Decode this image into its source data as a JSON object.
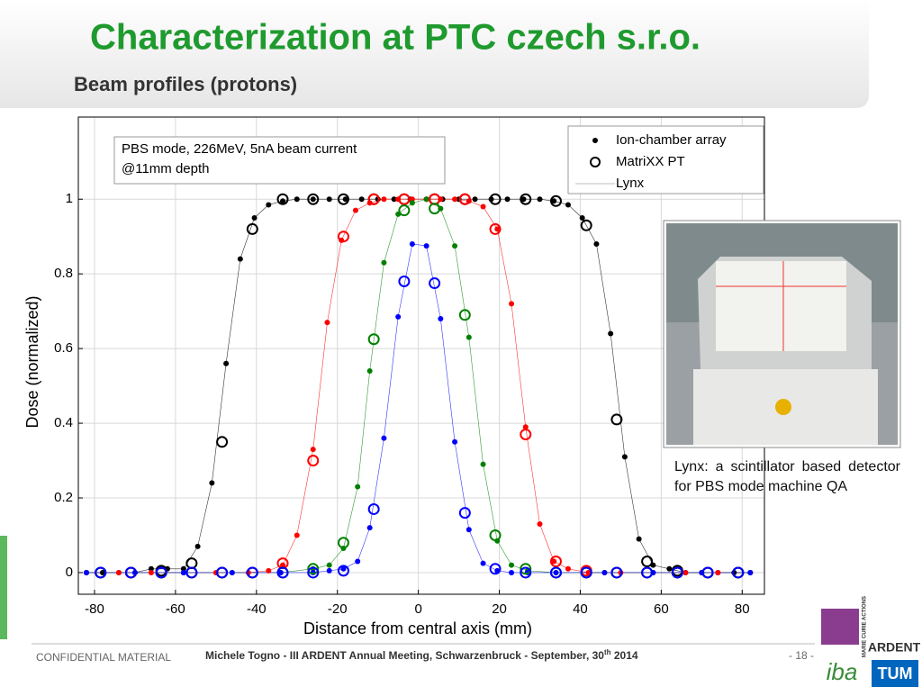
{
  "header": {
    "title": "Characterization at PTC czech s.r.o.",
    "subtitle": "Beam profiles (protons)"
  },
  "chart_data": {
    "type": "scatter",
    "annotation": [
      "PBS mode, 226MeV, 5nA beam current",
      "@11mm depth"
    ],
    "xlabel": "Distance from central axis (mm)",
    "ylabel": "Dose (normalized)",
    "xlim": [
      -84,
      85.5
    ],
    "ylim": [
      -0.058,
      1.22
    ],
    "xticks": [
      -80,
      -60,
      -40,
      -20,
      0,
      20,
      40,
      60,
      80
    ],
    "yticks": [
      0,
      0.2,
      0.4,
      0.6,
      0.8,
      1
    ],
    "grid": true,
    "legend_position": "upper right",
    "legend": [
      {
        "name": "Ion-chamber array",
        "marker": "dot"
      },
      {
        "name": "MatriXX PT",
        "marker": "circle"
      },
      {
        "name": "Lynx",
        "marker": "line"
      }
    ],
    "series": [
      {
        "color": "#000000",
        "marker": "line",
        "x": [
          -82,
          -78,
          -74,
          -70,
          -66,
          -62,
          -58,
          -54.5,
          -51,
          -47.5,
          -44,
          -40.5,
          -37,
          -33.5,
          -30,
          -26,
          -22,
          -18,
          -14,
          -10,
          -6,
          -2,
          2,
          6,
          10,
          14,
          18,
          22,
          26,
          30,
          33.5,
          37,
          40.5,
          44,
          47.5,
          51,
          54.5,
          58,
          62,
          66,
          70,
          74,
          78,
          82
        ],
        "values": [
          0,
          0,
          0,
          0,
          0.01,
          0.01,
          0.01,
          0.07,
          0.24,
          0.56,
          0.84,
          0.95,
          0.985,
          0.995,
          1,
          1,
          1,
          1,
          1,
          1,
          1,
          1,
          1,
          1,
          1,
          1,
          1,
          1,
          1,
          1,
          0.995,
          0.985,
          0.95,
          0.88,
          0.64,
          0.31,
          0.09,
          0.02,
          0.01,
          0,
          0,
          0,
          0,
          0
        ]
      },
      {
        "color": "#ff0000",
        "marker": "line",
        "x": [
          -82,
          -74,
          -66,
          -58,
          -50,
          -42,
          -37,
          -33.5,
          -30,
          -26,
          -22.5,
          -19,
          -15.5,
          -12,
          -8.5,
          -5,
          -1.5,
          2,
          5.5,
          9,
          12.5,
          16,
          19.5,
          23,
          26.5,
          30,
          33.5,
          37,
          42,
          50,
          58,
          66,
          74,
          82
        ],
        "values": [
          0,
          0,
          0,
          0,
          0,
          0,
          0.005,
          0.02,
          0.1,
          0.33,
          0.67,
          0.89,
          0.97,
          0.99,
          1,
          1,
          1,
          1,
          1,
          1,
          0.995,
          0.98,
          0.92,
          0.72,
          0.39,
          0.13,
          0.03,
          0.01,
          0,
          0,
          0,
          0,
          0,
          0
        ]
      },
      {
        "color": "#008000",
        "marker": "line",
        "x": [
          -82,
          -70,
          -58,
          -46,
          -34,
          -26,
          -22,
          -18.5,
          -15,
          -12,
          -8.5,
          -5,
          -1.5,
          2,
          5.5,
          9,
          12.5,
          16,
          19.5,
          23,
          27,
          34,
          46,
          58,
          70,
          82
        ],
        "values": [
          0,
          0,
          0,
          0,
          0,
          0.01,
          0.02,
          0.065,
          0.23,
          0.54,
          0.83,
          0.96,
          0.99,
          1,
          0.975,
          0.875,
          0.63,
          0.29,
          0.085,
          0.02,
          0.005,
          0,
          0,
          0,
          0,
          0
        ]
      },
      {
        "color": "#0000ff",
        "marker": "line",
        "x": [
          -82,
          -70,
          -58,
          -46,
          -34,
          -26,
          -22,
          -18.5,
          -15,
          -12,
          -8.5,
          -5,
          -1.5,
          2,
          5.5,
          9,
          12.5,
          16,
          19.5,
          23,
          27,
          34,
          46,
          58,
          70,
          82
        ],
        "values": [
          0,
          0,
          0,
          0,
          0,
          0,
          0.005,
          0.01,
          0.03,
          0.12,
          0.36,
          0.685,
          0.88,
          0.875,
          0.68,
          0.35,
          0.115,
          0.025,
          0.005,
          0,
          0,
          0,
          0,
          0,
          0,
          0
        ]
      },
      {
        "color": "#000000",
        "marker": "dot",
        "x": [
          -82,
          -78,
          -74,
          -70,
          -66,
          -62,
          -58,
          -54.5,
          -51,
          -47.5,
          -44,
          -40.5,
          -37,
          -33.5,
          -30,
          -26,
          -22,
          -18,
          -14,
          -10,
          -6,
          -2,
          2,
          6,
          10,
          14,
          18,
          22,
          26,
          30,
          33.5,
          37,
          40.5,
          44,
          47.5,
          51,
          54.5,
          58,
          62,
          66,
          70,
          74,
          78,
          82
        ],
        "values": [
          0,
          0,
          0,
          0,
          0.01,
          0.01,
          0.01,
          0.07,
          0.24,
          0.56,
          0.84,
          0.95,
          0.985,
          0.995,
          1,
          1,
          1,
          1,
          1,
          1,
          1,
          1,
          1,
          1,
          1,
          1,
          1,
          1,
          1,
          1,
          0.995,
          0.985,
          0.95,
          0.88,
          0.64,
          0.31,
          0.09,
          0.02,
          0.01,
          0,
          0,
          0,
          0,
          0
        ]
      },
      {
        "color": "#ff0000",
        "marker": "dot",
        "x": [
          -82,
          -74,
          -66,
          -58,
          -50,
          -42,
          -37,
          -33.5,
          -30,
          -26,
          -22.5,
          -19,
          -15.5,
          -12,
          -8.5,
          -5,
          -1.5,
          2,
          5.5,
          9,
          12.5,
          16,
          19.5,
          23,
          26.5,
          30,
          33.5,
          37,
          42,
          50,
          58,
          66,
          74,
          82
        ],
        "values": [
          0,
          0,
          0,
          0,
          0,
          0,
          0.005,
          0.02,
          0.1,
          0.33,
          0.67,
          0.89,
          0.97,
          0.99,
          1,
          1,
          1,
          1,
          1,
          1,
          0.995,
          0.98,
          0.92,
          0.72,
          0.39,
          0.13,
          0.03,
          0.01,
          0,
          0,
          0,
          0,
          0,
          0
        ]
      },
      {
        "color": "#008000",
        "marker": "dot",
        "x": [
          -82,
          -70,
          -58,
          -46,
          -34,
          -26,
          -22,
          -18.5,
          -15,
          -12,
          -8.5,
          -5,
          -1.5,
          2,
          5.5,
          9,
          12.5,
          16,
          19.5,
          23,
          27,
          34,
          46,
          58,
          70,
          82
        ],
        "values": [
          0,
          0,
          0,
          0,
          0,
          0.01,
          0.02,
          0.065,
          0.23,
          0.54,
          0.83,
          0.96,
          0.99,
          1,
          0.975,
          0.875,
          0.63,
          0.29,
          0.085,
          0.02,
          0.005,
          0,
          0,
          0,
          0,
          0
        ]
      },
      {
        "color": "#0000ff",
        "marker": "dot",
        "x": [
          -82,
          -70,
          -58,
          -46,
          -34,
          -26,
          -22,
          -18.5,
          -15,
          -12,
          -8.5,
          -5,
          -1.5,
          2,
          5.5,
          9,
          12.5,
          16,
          19.5,
          23,
          27,
          34,
          46,
          58,
          70,
          82
        ],
        "values": [
          0,
          0,
          0,
          0,
          0,
          0,
          0.005,
          0.01,
          0.03,
          0.12,
          0.36,
          0.685,
          0.88,
          0.875,
          0.68,
          0.35,
          0.115,
          0.025,
          0.005,
          0,
          0,
          0,
          0,
          0,
          0,
          0
        ]
      },
      {
        "color": "#000000",
        "marker": "circle",
        "x": [
          -78.5,
          -71,
          -63.5,
          -56,
          -48.5,
          -41,
          -33.5,
          -26,
          -18.5,
          -11,
          -3.5,
          4,
          11.5,
          19,
          26.5,
          34,
          41.5,
          49,
          56.5,
          64,
          71.5,
          79
        ],
        "values": [
          0,
          0,
          0.005,
          0.025,
          0.35,
          0.92,
          1,
          1,
          1,
          1,
          1,
          1,
          1,
          1,
          1,
          0.995,
          0.93,
          0.41,
          0.03,
          0.005,
          0,
          0
        ]
      },
      {
        "color": "#ff0000",
        "marker": "circle",
        "x": [
          -78.5,
          -71,
          -63.5,
          -56,
          -48.5,
          -41,
          -33.5,
          -26,
          -18.5,
          -11,
          -3.5,
          4,
          11.5,
          19,
          26.5,
          34,
          41.5,
          49,
          56.5,
          64,
          71.5,
          79
        ],
        "values": [
          0,
          0,
          0,
          0,
          0,
          0,
          0.025,
          0.3,
          0.9,
          1,
          1,
          1,
          1,
          0.92,
          0.37,
          0.03,
          0.005,
          0,
          0,
          0,
          0,
          0
        ]
      },
      {
        "color": "#008000",
        "marker": "circle",
        "x": [
          -78.5,
          -71,
          -63.5,
          -56,
          -48.5,
          -41,
          -33.5,
          -26,
          -18.5,
          -11,
          -3.5,
          4,
          11.5,
          19,
          26.5,
          34,
          41.5,
          49,
          56.5,
          64,
          71.5,
          79
        ],
        "values": [
          0,
          0,
          0,
          0,
          0,
          0,
          0,
          0.01,
          0.08,
          0.625,
          0.97,
          0.975,
          0.69,
          0.1,
          0.01,
          0,
          0,
          0,
          0,
          0,
          0,
          0
        ]
      },
      {
        "color": "#0000ff",
        "marker": "circle",
        "x": [
          -78.5,
          -71,
          -63.5,
          -56,
          -48.5,
          -41,
          -33.5,
          -26,
          -18.5,
          -11,
          -3.5,
          4,
          11.5,
          19,
          26.5,
          34,
          41.5,
          49,
          56.5,
          64,
          71.5,
          79
        ],
        "values": [
          0,
          0,
          0,
          0,
          0,
          0,
          0,
          0,
          0.005,
          0.17,
          0.78,
          0.775,
          0.16,
          0.01,
          0,
          0,
          0,
          0,
          0,
          0,
          0,
          0
        ]
      }
    ]
  },
  "caption": "Lynx: a scintillator based detector for PBS mode machine QA",
  "footer": {
    "left": "CONFIDENTIAL MATERIAL",
    "center": "Michele Togno - III ARDENT Annual Meeting, Schwarzenbruck - September, 30",
    "center_sup": "th",
    "center_end": " 2014",
    "page": "- 18 -"
  },
  "logos": {
    "marie_curie": "MARIE CURIE ACTIONS",
    "ardent": "ARDENT",
    "iba": "iba",
    "tum": "TUM"
  }
}
